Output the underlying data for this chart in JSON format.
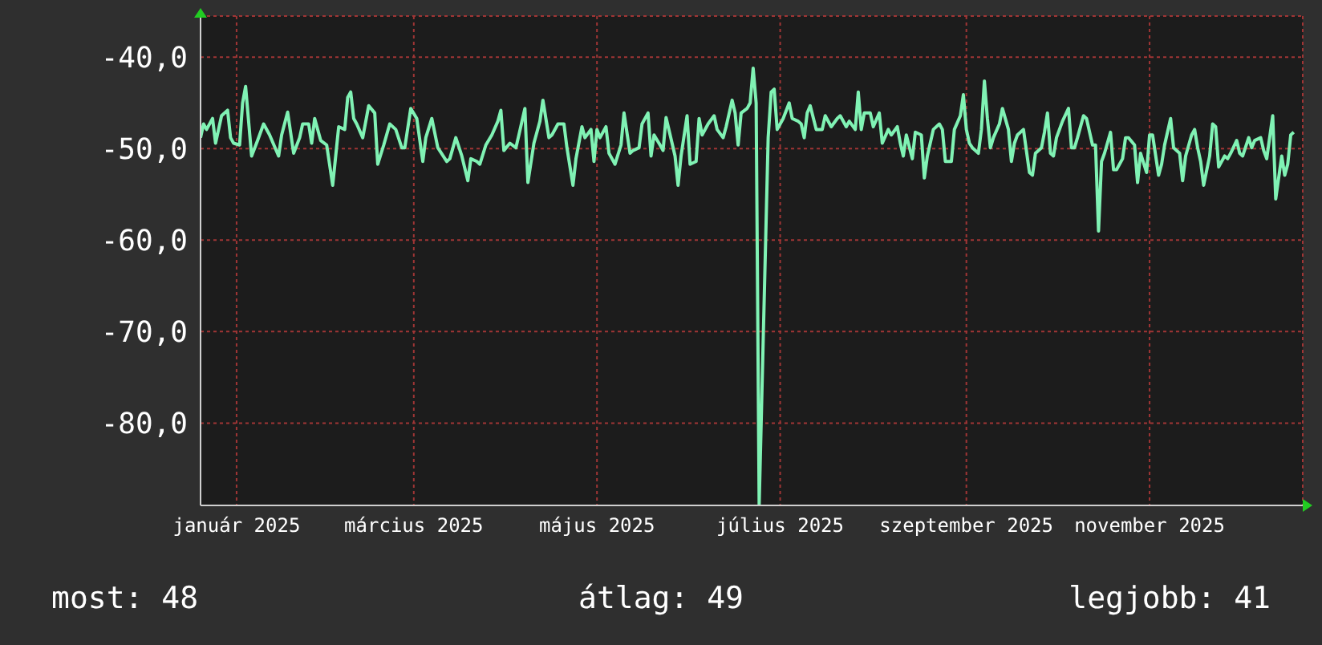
{
  "chart_data": {
    "type": "line",
    "xlim": [
      "2024-12-20",
      "2025-12-22"
    ],
    "ylim": [
      -89,
      -35.5
    ],
    "xticks": [
      {
        "value": "2025-01-01",
        "label": "január 2025"
      },
      {
        "value": "2025-03-01",
        "label": "március 2025"
      },
      {
        "value": "2025-05-01",
        "label": "május 2025"
      },
      {
        "value": "2025-07-01",
        "label": "július 2025"
      },
      {
        "value": "2025-09-01",
        "label": "szeptember 2025"
      },
      {
        "value": "2025-11-01",
        "label": "november 2025"
      }
    ],
    "yticks": [
      {
        "value": -40,
        "label": "-40,0"
      },
      {
        "value": -50,
        "label": "-50,0"
      },
      {
        "value": -60,
        "label": "-60,0"
      },
      {
        "value": -70,
        "label": "-70,0"
      },
      {
        "value": -80,
        "label": "-80,0"
      }
    ],
    "grid": true,
    "annotations": [
      "most: 48",
      "átlag: 49",
      "legjobb: 41"
    ],
    "x": [
      "2024-12-20",
      "2024-12-21",
      "2024-12-22",
      "2024-12-24",
      "2024-12-25",
      "2024-12-27",
      "2024-12-29",
      "2024-12-30",
      "2024-12-31",
      "2025-01-02",
      "2025-01-03",
      "2025-01-04",
      "2025-01-06",
      "2025-01-08",
      "2025-01-10",
      "2025-01-12",
      "2025-01-15",
      "2025-01-16",
      "2025-01-18",
      "2025-01-20",
      "2025-01-22",
      "2025-01-23",
      "2025-01-25",
      "2025-01-26",
      "2025-01-27",
      "2025-01-29",
      "2025-01-31",
      "2025-02-02",
      "2025-02-04",
      "2025-02-06",
      "2025-02-07",
      "2025-02-08",
      "2025-02-09",
      "2025-02-10",
      "2025-02-12",
      "2025-02-14",
      "2025-02-16",
      "2025-02-17",
      "2025-02-19",
      "2025-02-21",
      "2025-02-23",
      "2025-02-25",
      "2025-02-26",
      "2025-02-28",
      "2025-03-02",
      "2025-03-04",
      "2025-03-05",
      "2025-03-07",
      "2025-03-09",
      "2025-03-12",
      "2025-03-13",
      "2025-03-15",
      "2025-03-17",
      "2025-03-19",
      "2025-03-20",
      "2025-03-22",
      "2025-03-23",
      "2025-03-25",
      "2025-03-27",
      "2025-03-29",
      "2025-03-30",
      "2025-03-31",
      "2025-04-02",
      "2025-04-04",
      "2025-04-05",
      "2025-04-07",
      "2025-04-08",
      "2025-04-10",
      "2025-04-12",
      "2025-04-13",
      "2025-04-15",
      "2025-04-16",
      "2025-04-18",
      "2025-04-20",
      "2025-04-21",
      "2025-04-23",
      "2025-04-24",
      "2025-04-26",
      "2025-04-27",
      "2025-04-29",
      "2025-04-30",
      "2025-05-01",
      "2025-05-02",
      "2025-05-04",
      "2025-05-05",
      "2025-05-07",
      "2025-05-09",
      "2025-05-10",
      "2025-05-12",
      "2025-05-13",
      "2025-05-15",
      "2025-05-16",
      "2025-05-18",
      "2025-05-19",
      "2025-05-20",
      "2025-05-22",
      "2025-05-23",
      "2025-05-24",
      "2025-05-26",
      "2025-05-27",
      "2025-05-28",
      "2025-05-29",
      "2025-05-31",
      "2025-06-01",
      "2025-06-03",
      "2025-06-04",
      "2025-06-05",
      "2025-06-07",
      "2025-06-09",
      "2025-06-10",
      "2025-06-12",
      "2025-06-13",
      "2025-06-15",
      "2025-06-16",
      "2025-06-17",
      "2025-06-18",
      "2025-06-20",
      "2025-06-21",
      "2025-06-22",
      "2025-06-23",
      "2025-06-24",
      "2025-06-27",
      "2025-06-28",
      "2025-06-29",
      "2025-06-30",
      "2025-07-02",
      "2025-07-04",
      "2025-07-05",
      "2025-07-07",
      "2025-07-08",
      "2025-07-09",
      "2025-07-10",
      "2025-07-11",
      "2025-07-13",
      "2025-07-15",
      "2025-07-16",
      "2025-07-18",
      "2025-07-20",
      "2025-07-21",
      "2025-07-23",
      "2025-07-24",
      "2025-07-26",
      "2025-07-27",
      "2025-07-28",
      "2025-07-29",
      "2025-07-31",
      "2025-08-01",
      "2025-08-03",
      "2025-08-04",
      "2025-08-06",
      "2025-08-07",
      "2025-08-09",
      "2025-08-10",
      "2025-08-11",
      "2025-08-12",
      "2025-08-14",
      "2025-08-15",
      "2025-08-17",
      "2025-08-18",
      "2025-08-19",
      "2025-08-21",
      "2025-08-23",
      "2025-08-24",
      "2025-08-25",
      "2025-08-27",
      "2025-08-28",
      "2025-08-30",
      "2025-08-31",
      "2025-09-01",
      "2025-09-02",
      "2025-09-03",
      "2025-09-05",
      "2025-09-06",
      "2025-09-07",
      "2025-09-08",
      "2025-09-09",
      "2025-09-10",
      "2025-09-12",
      "2025-09-13",
      "2025-09-15",
      "2025-09-16",
      "2025-09-17",
      "2025-09-18",
      "2025-09-20",
      "2025-09-22",
      "2025-09-23",
      "2025-09-24",
      "2025-09-26",
      "2025-09-27",
      "2025-09-28",
      "2025-09-29",
      "2025-09-30",
      "2025-10-01",
      "2025-10-03",
      "2025-10-05",
      "2025-10-06",
      "2025-10-07",
      "2025-10-08",
      "2025-10-10",
      "2025-10-11",
      "2025-10-13",
      "2025-10-14",
      "2025-10-15",
      "2025-10-16",
      "2025-10-17",
      "2025-10-19",
      "2025-10-20",
      "2025-10-21",
      "2025-10-23",
      "2025-10-24",
      "2025-10-25",
      "2025-10-27",
      "2025-10-28",
      "2025-10-29",
      "2025-10-31",
      "2025-11-01",
      "2025-11-02",
      "2025-11-04",
      "2025-11-05",
      "2025-11-06",
      "2025-11-08",
      "2025-11-09",
      "2025-11-11",
      "2025-11-12",
      "2025-11-13",
      "2025-11-15",
      "2025-11-16",
      "2025-11-17",
      "2025-11-18",
      "2025-11-19",
      "2025-11-21",
      "2025-11-22",
      "2025-11-23",
      "2025-11-24",
      "2025-11-26",
      "2025-11-27",
      "2025-11-28",
      "2025-11-30",
      "2025-12-01",
      "2025-12-02",
      "2025-12-04",
      "2025-12-05",
      "2025-12-06",
      "2025-12-08",
      "2025-12-09",
      "2025-12-10",
      "2025-12-12",
      "2025-12-13",
      "2025-12-15",
      "2025-12-16",
      "2025-12-17",
      "2025-12-18",
      "2025-12-19"
    ],
    "series": [
      {
        "color": "#80f2b4",
        "values": [
          -48.8,
          -47.3,
          -47.9,
          -46.7,
          -49.4,
          -46.4,
          -45.8,
          -48.8,
          -49.4,
          -49.6,
          -45.0,
          -43.2,
          -50.8,
          -49.1,
          -47.3,
          -48.5,
          -50.8,
          -48.5,
          -46.0,
          -50.5,
          -48.8,
          -47.3,
          -47.3,
          -49.4,
          -46.7,
          -49.1,
          -49.6,
          -54.0,
          -47.6,
          -47.9,
          -44.4,
          -43.8,
          -46.7,
          -47.3,
          -48.8,
          -45.3,
          -46.1,
          -51.7,
          -49.6,
          -47.3,
          -47.9,
          -49.9,
          -49.9,
          -45.6,
          -46.7,
          -51.4,
          -48.8,
          -46.7,
          -49.9,
          -51.4,
          -51.1,
          -48.8,
          -50.8,
          -53.5,
          -51.1,
          -51.4,
          -51.7,
          -49.6,
          -48.5,
          -47.0,
          -45.8,
          -50.2,
          -49.4,
          -49.9,
          -48.5,
          -45.6,
          -53.7,
          -49.4,
          -47.0,
          -44.7,
          -48.8,
          -48.5,
          -47.3,
          -47.3,
          -49.9,
          -54.0,
          -51.1,
          -47.6,
          -48.8,
          -47.9,
          -51.4,
          -47.9,
          -48.8,
          -47.6,
          -50.5,
          -51.7,
          -49.6,
          -46.1,
          -50.5,
          -50.2,
          -49.9,
          -47.3,
          -46.1,
          -50.8,
          -48.5,
          -49.6,
          -50.2,
          -46.6,
          -49.4,
          -50.8,
          -54.0,
          -50.8,
          -46.4,
          -51.7,
          -51.4,
          -46.7,
          -48.5,
          -47.3,
          -46.4,
          -47.9,
          -48.8,
          -47.6,
          -44.7,
          -46.1,
          -49.6,
          -46.1,
          -45.6,
          -45.0,
          -41.2,
          -45.0,
          -89,
          -48.8,
          -43.8,
          -43.5,
          -47.9,
          -46.7,
          -45.0,
          -46.7,
          -47.0,
          -47.3,
          -48.8,
          -46.1,
          -45.3,
          -47.9,
          -47.9,
          -46.4,
          -47.6,
          -46.7,
          -46.4,
          -47.6,
          -47.0,
          -47.9,
          -43.8,
          -47.9,
          -46.1,
          -46.1,
          -47.6,
          -46.1,
          -49.4,
          -47.9,
          -48.5,
          -47.6,
          -49.4,
          -50.8,
          -48.5,
          -51.1,
          -48.2,
          -48.5,
          -53.2,
          -50.8,
          -47.9,
          -47.3,
          -47.9,
          -51.4,
          -51.4,
          -47.9,
          -46.4,
          -44.1,
          -47.9,
          -49.4,
          -49.9,
          -50.5,
          -47.9,
          -42.6,
          -46.7,
          -49.9,
          -48.8,
          -47.3,
          -45.6,
          -47.9,
          -51.4,
          -49.4,
          -48.5,
          -47.9,
          -52.6,
          -52.9,
          -50.5,
          -49.9,
          -48.2,
          -46.1,
          -50.5,
          -50.8,
          -48.8,
          -47.0,
          -45.6,
          -49.9,
          -49.9,
          -48.8,
          -46.4,
          -46.7,
          -49.6,
          -49.6,
          -59.0,
          -51.4,
          -50.5,
          -48.2,
          -52.3,
          -52.3,
          -51.1,
          -48.8,
          -48.8,
          -49.6,
          -53.7,
          -50.5,
          -52.6,
          -48.5,
          -48.5,
          -52.9,
          -51.7,
          -49.6,
          -46.7,
          -49.9,
          -50.5,
          -53.5,
          -50.8,
          -48.5,
          -47.9,
          -49.9,
          -51.4,
          -54.0,
          -50.8,
          -47.3,
          -47.6,
          -52.0,
          -50.8,
          -51.1,
          -50.5,
          -49.1,
          -50.5,
          -50.8,
          -48.8,
          -49.9,
          -49.1,
          -48.8,
          -50.2,
          -51.1,
          -46.4,
          -55.5,
          -50.8,
          -52.9,
          -51.7,
          -48.5,
          -48.2
        ]
      }
    ]
  }
}
